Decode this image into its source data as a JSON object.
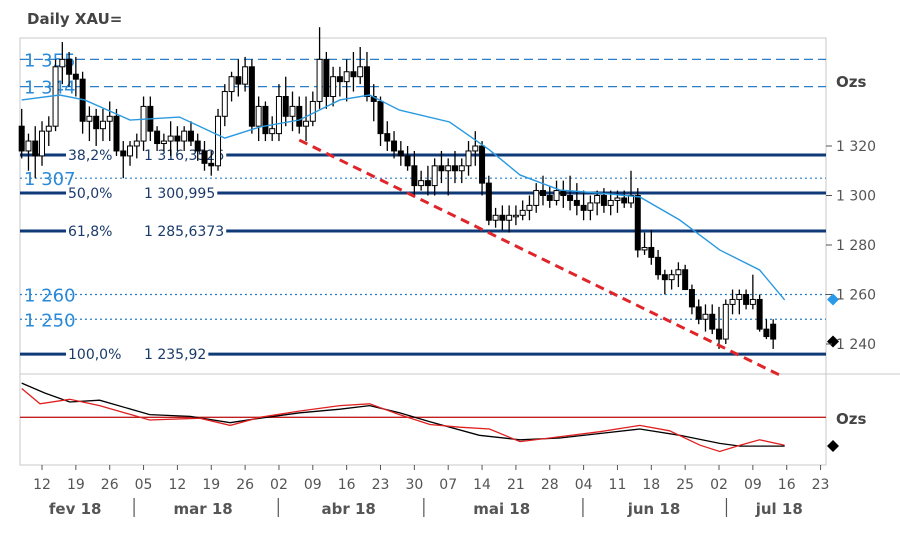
{
  "chart_data": {
    "type": "candlestick",
    "title": "Daily XAU=",
    "unit_label": "Ozs",
    "indicator_unit_label": "Ozs",
    "ylim": [
      1228,
      1364
    ],
    "y_ticks": [
      {
        "v": 1320,
        "label": "1 320"
      },
      {
        "v": 1300,
        "label": "1 300"
      },
      {
        "v": 1280,
        "label": "1 280"
      },
      {
        "v": 1260,
        "label": "1 260"
      },
      {
        "v": 1240,
        "label": "1 240"
      }
    ],
    "x_ticks": [
      {
        "i": 3,
        "label": "12"
      },
      {
        "i": 8,
        "label": "19"
      },
      {
        "i": 13,
        "label": "26"
      },
      {
        "i": 18,
        "label": "05"
      },
      {
        "i": 23,
        "label": "12"
      },
      {
        "i": 28,
        "label": "19"
      },
      {
        "i": 33,
        "label": "26"
      },
      {
        "i": 38,
        "label": "02"
      },
      {
        "i": 43,
        "label": "09"
      },
      {
        "i": 48,
        "label": "16"
      },
      {
        "i": 53,
        "label": "23"
      },
      {
        "i": 58,
        "label": "30"
      },
      {
        "i": 63,
        "label": "07"
      },
      {
        "i": 68,
        "label": "14"
      },
      {
        "i": 73,
        "label": "21"
      },
      {
        "i": 78,
        "label": "28"
      },
      {
        "i": 83,
        "label": "04"
      },
      {
        "i": 88,
        "label": "11"
      },
      {
        "i": 93,
        "label": "18"
      },
      {
        "i": 98,
        "label": "25"
      },
      {
        "i": 103,
        "label": "02"
      },
      {
        "i": 108,
        "label": "09"
      },
      {
        "i": 113,
        "label": "16"
      },
      {
        "i": 118,
        "label": "23"
      }
    ],
    "months": [
      {
        "label": "fev 18",
        "center": 7.9,
        "sep": 16.6
      },
      {
        "label": "mar 18",
        "center": 26.8,
        "sep": 37.9
      },
      {
        "label": "abr 18",
        "center": 48.3,
        "sep": 59.4
      },
      {
        "label": "mai 18",
        "center": 70.9,
        "sep": 82.9
      },
      {
        "label": "jun 18",
        "center": 93.4,
        "sep": 104.1
      },
      {
        "label": "jul 18",
        "center": 111.9,
        "sep": null
      }
    ],
    "resistance_levels": [
      {
        "value": 1355,
        "label": "1 355",
        "style": "dashed"
      },
      {
        "value": 1344,
        "label": "1 344",
        "style": "dashed"
      },
      {
        "value": 1307,
        "label": "1 307",
        "style": "dotted"
      },
      {
        "value": 1260,
        "label": "1 260",
        "style": "dotted"
      },
      {
        "value": 1250,
        "label": "1 250",
        "style": "dotted"
      }
    ],
    "fibonacci_levels": [
      {
        "value": 1316.3526,
        "pct": "38,2%",
        "label": "1 316,3526"
      },
      {
        "value": 1300.995,
        "pct": "50,0%",
        "label": "1 300,995"
      },
      {
        "value": 1285.6373,
        "pct": "61,8%",
        "label": "1 285,6373"
      },
      {
        "value": 1235.92,
        "pct": "100,0%",
        "label": "1 235,92"
      }
    ],
    "trendline": {
      "from": [
        41,
        1322.4
      ],
      "to": [
        112,
        1227.4
      ]
    },
    "markers": [
      {
        "value": 1258,
        "color": "#2a9ae8"
      },
      {
        "value": 1241,
        "color": "#000000"
      }
    ],
    "candles": [
      [
        1328,
        1335,
        1315,
        1318
      ],
      [
        1318,
        1325,
        1310,
        1322
      ],
      [
        1322,
        1328,
        1307,
        1316
      ],
      [
        1316,
        1330,
        1312,
        1326
      ],
      [
        1326,
        1332,
        1320,
        1328
      ],
      [
        1328,
        1355,
        1326,
        1352
      ],
      [
        1352,
        1362,
        1345,
        1355
      ],
      [
        1355,
        1358,
        1344,
        1349
      ],
      [
        1349,
        1356,
        1340,
        1347
      ],
      [
        1347,
        1350,
        1325,
        1330
      ],
      [
        1330,
        1336,
        1322,
        1332
      ],
      [
        1332,
        1335,
        1320,
        1327
      ],
      [
        1327,
        1335,
        1322,
        1330
      ],
      [
        1330,
        1338,
        1322,
        1332
      ],
      [
        1332,
        1335,
        1316,
        1318
      ],
      [
        1318,
        1322,
        1307,
        1316
      ],
      [
        1316,
        1322,
        1312,
        1320
      ],
      [
        1320,
        1325,
        1315,
        1322
      ],
      [
        1322,
        1340,
        1318,
        1336
      ],
      [
        1336,
        1340,
        1322,
        1326
      ],
      [
        1326,
        1328,
        1318,
        1321
      ],
      [
        1321,
        1325,
        1318,
        1322
      ],
      [
        1322,
        1330,
        1316,
        1324
      ],
      [
        1324,
        1328,
        1318,
        1322
      ],
      [
        1322,
        1328,
        1318,
        1326
      ],
      [
        1326,
        1330,
        1320,
        1322
      ],
      [
        1322,
        1325,
        1314,
        1318
      ],
      [
        1318,
        1322,
        1310,
        1313
      ],
      [
        1313,
        1318,
        1308,
        1312
      ],
      [
        1312,
        1335,
        1310,
        1332
      ],
      [
        1332,
        1345,
        1328,
        1342
      ],
      [
        1342,
        1350,
        1338,
        1348
      ],
      [
        1348,
        1355,
        1340,
        1345
      ],
      [
        1345,
        1356,
        1342,
        1352
      ],
      [
        1352,
        1355,
        1325,
        1328
      ],
      [
        1328,
        1340,
        1322,
        1336
      ],
      [
        1336,
        1338,
        1322,
        1325
      ],
      [
        1325,
        1332,
        1322,
        1327
      ],
      [
        1325,
        1345,
        1322,
        1340
      ],
      [
        1340,
        1348,
        1328,
        1332
      ],
      [
        1332,
        1342,
        1326,
        1336
      ],
      [
        1336,
        1340,
        1325,
        1328
      ],
      [
        1328,
        1340,
        1322,
        1330
      ],
      [
        1330,
        1342,
        1328,
        1338
      ],
      [
        1338,
        1368,
        1335,
        1355
      ],
      [
        1355,
        1358,
        1335,
        1340
      ],
      [
        1340,
        1352,
        1336,
        1348
      ],
      [
        1348,
        1352,
        1340,
        1346
      ],
      [
        1346,
        1355,
        1338,
        1350
      ],
      [
        1350,
        1358,
        1342,
        1348
      ],
      [
        1348,
        1360,
        1345,
        1352
      ],
      [
        1352,
        1358,
        1338,
        1340
      ],
      [
        1340,
        1345,
        1330,
        1338
      ],
      [
        1338,
        1340,
        1320,
        1325
      ],
      [
        1325,
        1330,
        1318,
        1322
      ],
      [
        1322,
        1326,
        1315,
        1318
      ],
      [
        1318,
        1322,
        1312,
        1316
      ],
      [
        1316,
        1320,
        1310,
        1312
      ],
      [
        1312,
        1318,
        1300,
        1304
      ],
      [
        1304,
        1310,
        1302,
        1306
      ],
      [
        1306,
        1312,
        1300,
        1304
      ],
      [
        1304,
        1315,
        1300,
        1312
      ],
      [
        1312,
        1318,
        1305,
        1310
      ],
      [
        1310,
        1315,
        1300,
        1312
      ],
      [
        1312,
        1318,
        1305,
        1310
      ],
      [
        1310,
        1315,
        1305,
        1312
      ],
      [
        1312,
        1322,
        1308,
        1318
      ],
      [
        1318,
        1326,
        1312,
        1320
      ],
      [
        1320,
        1322,
        1300,
        1305
      ],
      [
        1305,
        1308,
        1288,
        1290
      ],
      [
        1290,
        1295,
        1287,
        1292
      ],
      [
        1292,
        1296,
        1286,
        1290
      ],
      [
        1290,
        1296,
        1285,
        1292
      ],
      [
        1292,
        1296,
        1288,
        1292
      ],
      [
        1292,
        1298,
        1290,
        1294
      ],
      [
        1294,
        1300,
        1290,
        1296
      ],
      [
        1296,
        1305,
        1293,
        1302
      ],
      [
        1302,
        1308,
        1296,
        1300
      ],
      [
        1300,
        1304,
        1295,
        1298
      ],
      [
        1298,
        1306,
        1296,
        1302
      ],
      [
        1302,
        1306,
        1295,
        1300
      ],
      [
        1300,
        1308,
        1294,
        1298
      ],
      [
        1298,
        1305,
        1292,
        1296
      ],
      [
        1296,
        1302,
        1290,
        1294
      ],
      [
        1294,
        1300,
        1290,
        1297
      ],
      [
        1297,
        1302,
        1292,
        1300
      ],
      [
        1300,
        1303,
        1293,
        1296
      ],
      [
        1296,
        1302,
        1292,
        1298
      ],
      [
        1298,
        1302,
        1293,
        1299
      ],
      [
        1299,
        1302,
        1295,
        1297
      ],
      [
        1297,
        1310,
        1295,
        1300
      ],
      [
        1300,
        1303,
        1275,
        1278
      ],
      [
        1278,
        1285,
        1276,
        1279
      ],
      [
        1279,
        1286,
        1272,
        1275
      ],
      [
        1275,
        1278,
        1266,
        1268
      ],
      [
        1268,
        1270,
        1260,
        1266
      ],
      [
        1266,
        1270,
        1262,
        1268
      ],
      [
        1268,
        1273,
        1263,
        1270
      ],
      [
        1270,
        1272,
        1262,
        1262
      ],
      [
        1262,
        1264,
        1252,
        1255
      ],
      [
        1255,
        1258,
        1248,
        1250
      ],
      [
        1250,
        1256,
        1245,
        1252
      ],
      [
        1252,
        1256,
        1244,
        1246
      ],
      [
        1246,
        1255,
        1238,
        1242
      ],
      [
        1242,
        1258,
        1240,
        1256
      ],
      [
        1256,
        1262,
        1252,
        1258
      ],
      [
        1258,
        1262,
        1252,
        1260
      ],
      [
        1260,
        1262,
        1254,
        1256
      ],
      [
        1256,
        1268,
        1254,
        1258
      ],
      [
        1258,
        1260,
        1245,
        1246
      ],
      [
        1246,
        1250,
        1242,
        1243
      ],
      [
        1248,
        1250,
        1238,
        1242
      ]
    ],
    "moving_average": [
      [
        0,
        1338.6
      ],
      [
        5.6,
        1340.6
      ],
      [
        9.3,
        1338.6
      ],
      [
        16,
        1330.5
      ],
      [
        23.3,
        1331.7
      ],
      [
        30,
        1323.2
      ],
      [
        35.2,
        1327.7
      ],
      [
        41,
        1330.5
      ],
      [
        47,
        1338.6
      ],
      [
        51.4,
        1340.6
      ],
      [
        55.8,
        1334.5
      ],
      [
        63.2,
        1329.7
      ],
      [
        69.1,
        1318.4
      ],
      [
        73.6,
        1308.3
      ],
      [
        79.5,
        1302.2
      ],
      [
        85.4,
        1301
      ],
      [
        91.3,
        1299.4
      ],
      [
        97.2,
        1290.1
      ],
      [
        103.1,
        1278
      ],
      [
        109,
        1269.9
      ],
      [
        112.7,
        1257.8
      ]
    ],
    "indicator": {
      "reference_level": 53,
      "series": [
        {
          "name": "black",
          "color": "#000000",
          "points": [
            [
              0,
              91
            ],
            [
              3.4,
              80
            ],
            [
              7.1,
              70
            ],
            [
              11.5,
              72
            ],
            [
              18.9,
              56
            ],
            [
              24.9,
              54
            ],
            [
              30.8,
              47
            ],
            [
              35.2,
              52
            ],
            [
              41.1,
              58
            ],
            [
              47,
              62
            ],
            [
              51.4,
              66
            ],
            [
              55.8,
              58
            ],
            [
              60.3,
              48
            ],
            [
              67.6,
              33
            ],
            [
              73.6,
              28
            ],
            [
              79.5,
              30
            ],
            [
              85.4,
              35
            ],
            [
              91.3,
              40
            ],
            [
              97.2,
              33
            ],
            [
              103.1,
              24
            ],
            [
              106.1,
              21
            ],
            [
              112.7,
              21
            ]
          ]
        },
        {
          "name": "red",
          "color": "#e02020",
          "points": [
            [
              0,
              85
            ],
            [
              2.7,
              68
            ],
            [
              7.1,
              73
            ],
            [
              11.5,
              66
            ],
            [
              18.9,
              50
            ],
            [
              26.3,
              52
            ],
            [
              30.8,
              44
            ],
            [
              35.2,
              53
            ],
            [
              41.1,
              60
            ],
            [
              47,
              66
            ],
            [
              51.4,
              68
            ],
            [
              55.8,
              56
            ],
            [
              60.3,
              45
            ],
            [
              64.7,
              42
            ],
            [
              69.1,
              40
            ],
            [
              73.6,
              26
            ],
            [
              78,
              30
            ],
            [
              85.4,
              37
            ],
            [
              91.3,
              44
            ],
            [
              95.7,
              38
            ],
            [
              100.2,
              22
            ],
            [
              103.1,
              15
            ],
            [
              106.1,
              22
            ],
            [
              109,
              28
            ],
            [
              112.7,
              22
            ]
          ]
        }
      ]
    }
  }
}
